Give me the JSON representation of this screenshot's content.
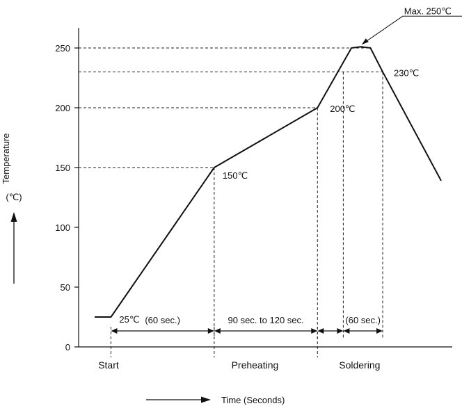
{
  "chart_data": {
    "type": "line",
    "title": "",
    "xlabel": "Time (Seconds)",
    "ylabel": "Temperature",
    "yunit": "(℃)",
    "ylim": [
      0,
      265
    ],
    "yticks": [
      0,
      50,
      100,
      150,
      200,
      250
    ],
    "grid": false,
    "series": [
      {
        "x": [
          0,
          12,
          88,
          164,
          189,
          196,
          203,
          212,
          255
        ],
        "y": [
          25,
          25,
          150,
          200,
          250,
          251,
          250,
          230,
          139
        ]
      }
    ],
    "point_labels": [
      {
        "text": "25℃",
        "x": 13,
        "y": 25
      },
      {
        "text": "150℃",
        "x": 89,
        "y": 150
      },
      {
        "text": "200℃",
        "x": 165,
        "y": 200
      },
      {
        "text": "230℃",
        "x": 213,
        "y": 230
      },
      {
        "text": "Max. 250℃",
        "x": 196,
        "y": 251
      }
    ],
    "intervals": [
      {
        "label": "(60 sec.)",
        "from": 12,
        "to": 88
      },
      {
        "label": "90 sec. to 120 sec.",
        "from": 88,
        "to": 164
      },
      {
        "label": "",
        "from": 164,
        "to": 183
      },
      {
        "label": "(60 sec.)",
        "from": 183,
        "to": 212
      }
    ],
    "guides": {
      "horizontal": [
        {
          "y": 250,
          "x_to": 203
        },
        {
          "y": 230,
          "x_to": 212
        },
        {
          "y": 200,
          "x_to": 164
        },
        {
          "y": 150,
          "x_to": 88
        }
      ],
      "vertical": [
        {
          "x": 88,
          "y_from": 150
        },
        {
          "x": 164,
          "y_from": 200
        },
        {
          "x": 183,
          "y_from": 230
        },
        {
          "x": 212,
          "y_from": 230
        }
      ]
    },
    "phases": [
      {
        "label": "Start",
        "at": 0
      },
      {
        "label": "Preheating",
        "at": 118
      },
      {
        "label": "Soldering",
        "at": 195
      }
    ],
    "phase_markers": [
      12,
      88,
      164
    ]
  }
}
